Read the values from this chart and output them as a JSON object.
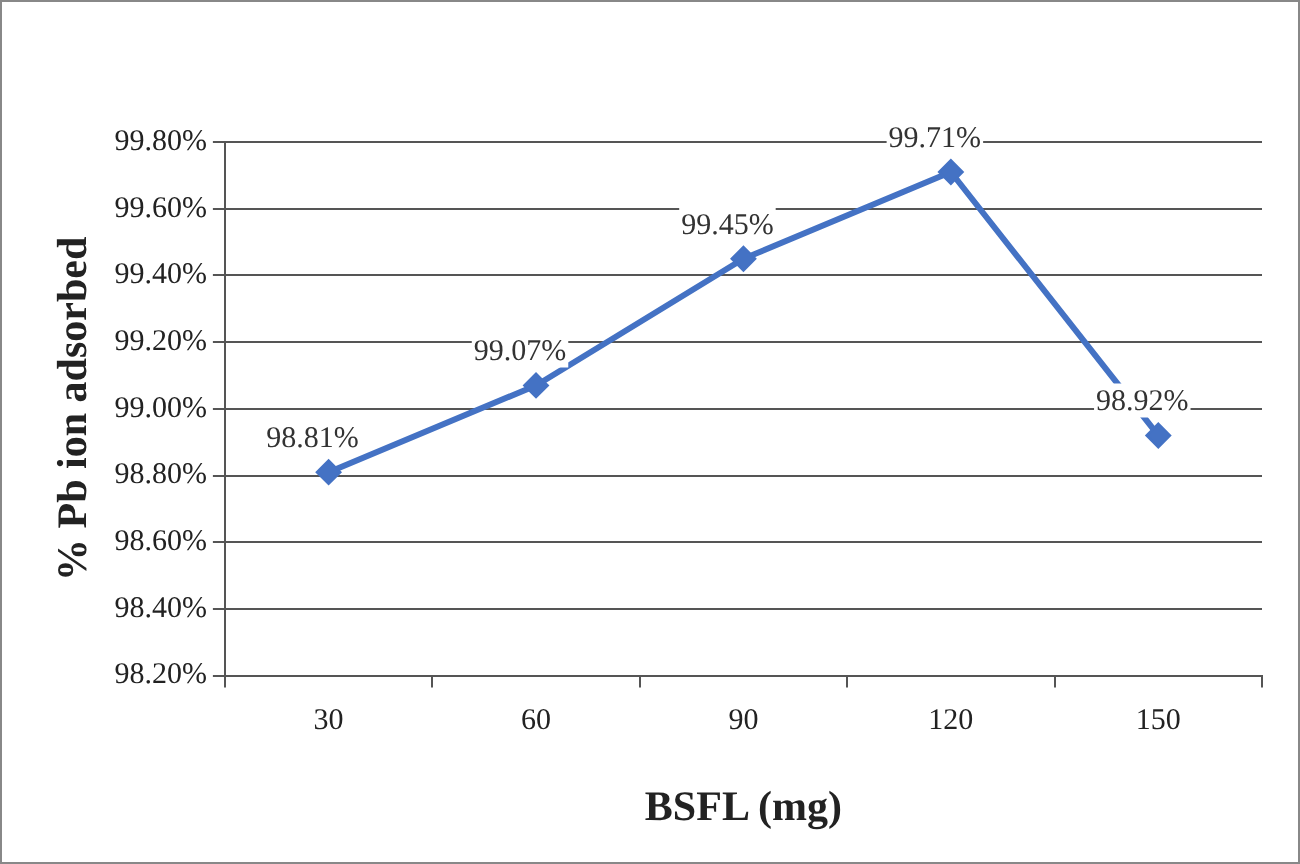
{
  "chart_data": {
    "type": "line",
    "xlabel": "BSFL (mg)",
    "ylabel": "% Pb ion adsorbed",
    "categories": [
      "30",
      "60",
      "90",
      "120",
      "150"
    ],
    "series": [
      {
        "color": "#4472c4",
        "values": [
          98.81,
          99.07,
          99.45,
          99.71,
          98.92
        ],
        "value_labels": [
          "98.81%",
          "99.07%",
          "99.45%",
          "99.71%",
          "98.92%"
        ]
      }
    ],
    "ylim": [
      98.2,
      99.8
    ],
    "yticks": [
      {
        "value": 98.2,
        "label": "98.20%"
      },
      {
        "value": 98.4,
        "label": "98.40%"
      },
      {
        "value": 98.6,
        "label": "98.60%"
      },
      {
        "value": 98.8,
        "label": "98.80%"
      },
      {
        "value": 99.0,
        "label": "99.00%"
      },
      {
        "value": 99.2,
        "label": "99.20%"
      },
      {
        "value": 99.4,
        "label": "99.40%"
      },
      {
        "value": 99.6,
        "label": "99.60%"
      },
      {
        "value": 99.8,
        "label": "99.80%"
      }
    ],
    "grid": "y",
    "legend": false,
    "marker": "diamond",
    "line_style": "solid"
  }
}
